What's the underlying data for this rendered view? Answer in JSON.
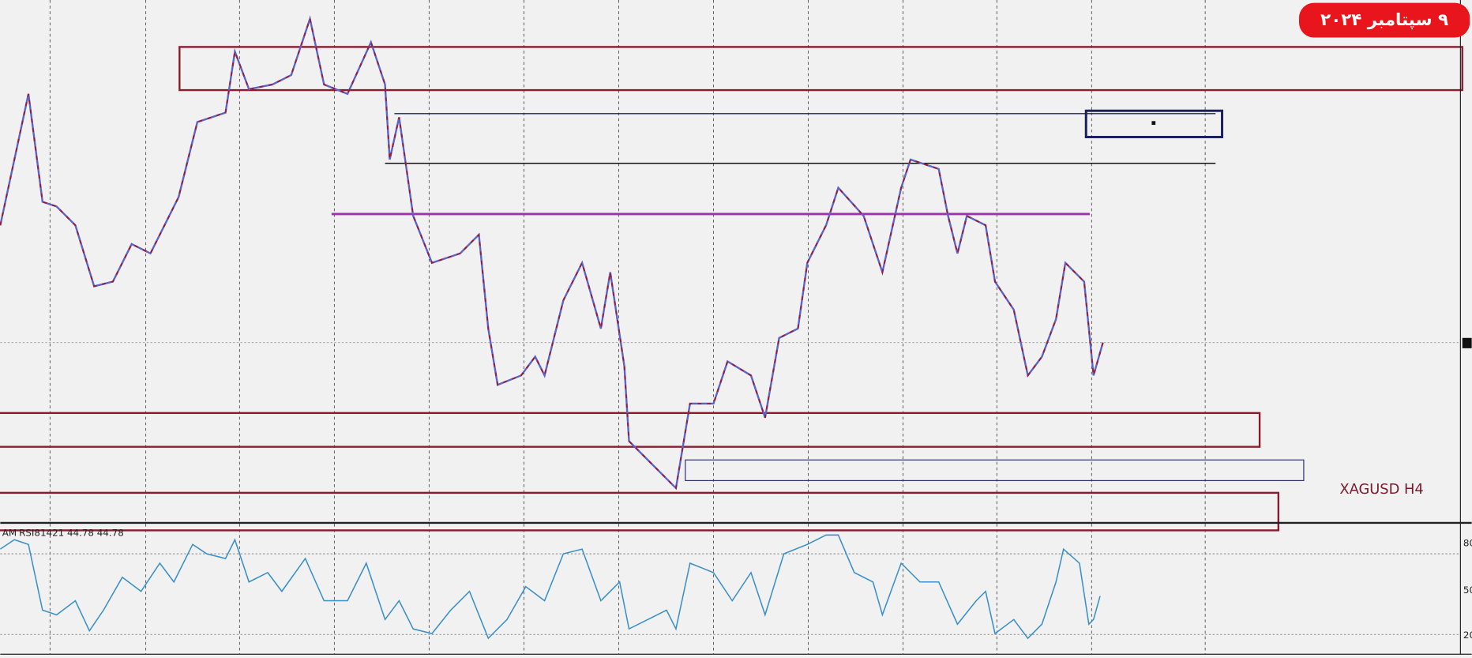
{
  "header": {
    "date_badge": "۹ سپتامبر ۲۰۲۴"
  },
  "chart_label": "XAGUSD H4",
  "indicator": {
    "prefix": "AM",
    "label": "RSI81421 44.78 44.78",
    "axis_labels": [
      "80",
      "50",
      "20"
    ]
  }
}
